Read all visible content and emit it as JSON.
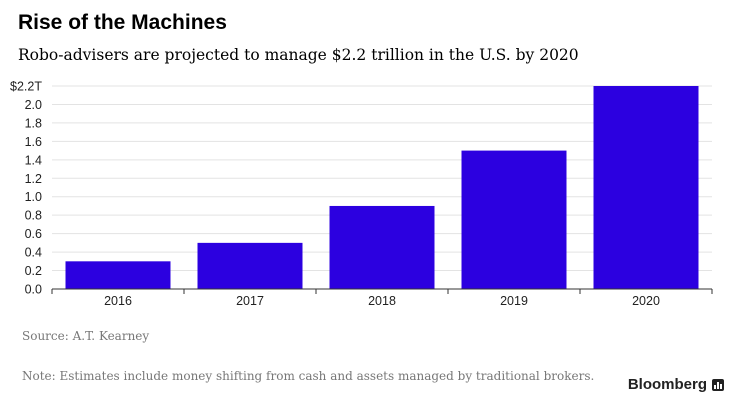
{
  "title": "Rise of the Machines",
  "subtitle": "Robo-advisers are projected to manage $2.2 trillion in the U.S. by 2020",
  "source": "Source: A.T. Kearney",
  "note": "Note: Estimates include money shifting from cash and assets managed by traditional brokers.",
  "brand": {
    "name": "Bloomberg",
    "icon": "bloomberg-chart-icon"
  },
  "colors": {
    "bar": "#2c00e0",
    "grid": "#e3e3e3",
    "axis": "#333333",
    "text": "#222222"
  },
  "chart_data": {
    "type": "bar",
    "categories": [
      "2016",
      "2017",
      "2018",
      "2019",
      "2020"
    ],
    "values": [
      0.3,
      0.5,
      0.9,
      1.5,
      2.2
    ],
    "ylim": [
      0,
      2.2
    ],
    "yticks": [
      0,
      0.2,
      0.4,
      0.6,
      0.8,
      1.0,
      1.2,
      1.4,
      1.6,
      1.8,
      2.0,
      2.2
    ],
    "ytick_labels": [
      "0.0",
      "0.2",
      "0.4",
      "0.6",
      "0.8",
      "1.0",
      "1.2",
      "1.4",
      "1.6",
      "1.8",
      "2.0",
      "$2.2T"
    ],
    "grid": true,
    "title": "Rise of the Machines",
    "xlabel": "",
    "ylabel": ""
  }
}
